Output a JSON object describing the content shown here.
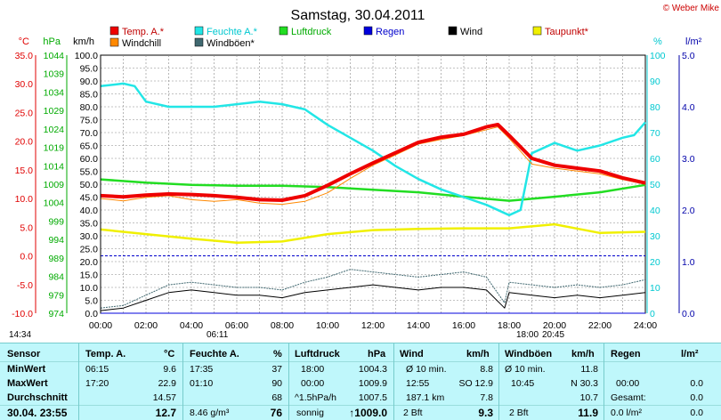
{
  "title": "Samstag, 30.04.2011",
  "copyright": "© Weber Mike",
  "colors": {
    "temp": "#ee0000",
    "feuchte": "#22e6e6",
    "luftdruck": "#22dd22",
    "regen": "#0000dd",
    "wind": "#000000",
    "taupunkt": "#f0f000",
    "windchill": "#ff8800",
    "windboeen": "#406870",
    "table_bg": "#bff7fb"
  },
  "legend": [
    {
      "label": "Temp. A.*",
      "color": "#ee0000"
    },
    {
      "label": "Feuchte A.*",
      "color": "#22e6e6"
    },
    {
      "label": "Luftdruck",
      "color": "#22dd22"
    },
    {
      "label": "Regen",
      "color": "#0000dd"
    },
    {
      "label": "Wind",
      "color": "#000000"
    },
    {
      "label": "Taupunkt*",
      "color": "#f0f000"
    },
    {
      "label": "Windchill",
      "color": "#ff8800"
    },
    {
      "label": "Windböen*",
      "color": "#406870"
    }
  ],
  "axes": {
    "celsius": {
      "label": "°C",
      "ticks": [
        "35.0",
        "30.0",
        "25.0",
        "20.0",
        "15.0",
        "10.0",
        "5.0",
        "0.0",
        "-5.0",
        "-10.0"
      ],
      "min": -10,
      "max": 35
    },
    "hpa": {
      "label": "hPa",
      "ticks": [
        "1044",
        "1039",
        "1034",
        "1029",
        "1024",
        "1019",
        "1014",
        "1009",
        "1004",
        "999",
        "994",
        "989",
        "984",
        "979",
        "974"
      ],
      "min": 974,
      "max": 1044
    },
    "kmh": {
      "label": "km/h",
      "ticks": [
        "100.0",
        "95.0",
        "90.0",
        "85.0",
        "80.0",
        "75.0",
        "70.0",
        "65.0",
        "60.0",
        "55.0",
        "50.0",
        "45.0",
        "40.0",
        "35.0",
        "30.0",
        "25.0",
        "20.0",
        "15.0",
        "10.0",
        "5.0",
        "0.0"
      ],
      "min": 0,
      "max": 100
    },
    "percent": {
      "label": "%",
      "ticks": [
        "100",
        "90",
        "80",
        "70",
        "60",
        "50",
        "40",
        "30",
        "20",
        "10",
        "0"
      ],
      "min": 0,
      "max": 100
    },
    "lm2": {
      "label": "l/m²",
      "ticks": [
        "5.0",
        "4.0",
        "3.0",
        "2.0",
        "1.0",
        "0.0"
      ],
      "min": 0,
      "max": 5
    },
    "time": {
      "ticks": [
        "00:00",
        "02:00",
        "04:00",
        "06:00",
        "08:00",
        "10:00",
        "12:00",
        "14:00",
        "16:00",
        "18:00",
        "20:00",
        "22:00",
        "24:00"
      ]
    }
  },
  "chart_data": {
    "type": "line",
    "title": "Samstag, 30.04.2011",
    "xlim": [
      0,
      24
    ],
    "grid": true,
    "legend_position": "top",
    "series": [
      {
        "name": "Temp. A.*",
        "axis": "celsius",
        "x": [
          0,
          1,
          2,
          3,
          4,
          5,
          6,
          7,
          8,
          9,
          10,
          11,
          12,
          13,
          14,
          15,
          16,
          17,
          17.5,
          18,
          19,
          20,
          21,
          22,
          23,
          24
        ],
        "values": [
          10.5,
          10.3,
          10.6,
          10.8,
          10.7,
          10.5,
          10.2,
          9.8,
          9.7,
          10.5,
          12.3,
          14.3,
          16.2,
          18.0,
          19.8,
          20.7,
          21.2,
          22.5,
          22.9,
          21.0,
          17.0,
          15.8,
          15.3,
          14.8,
          13.6,
          12.7
        ]
      },
      {
        "name": "Windchill",
        "axis": "celsius",
        "x": [
          0,
          1,
          2,
          3,
          4,
          5,
          6,
          7,
          8,
          9,
          10,
          11,
          12,
          13,
          14,
          15,
          16,
          17,
          17.5,
          18,
          19,
          20,
          21,
          22,
          23,
          24
        ],
        "values": [
          10.0,
          9.6,
          10.2,
          10.5,
          9.8,
          9.5,
          9.8,
          9.2,
          9.0,
          9.5,
          11.0,
          13.5,
          15.8,
          17.6,
          19.5,
          20.3,
          21.0,
          22.0,
          22.5,
          20.5,
          16.0,
          15.3,
          14.8,
          14.3,
          13.3,
          12.5
        ]
      },
      {
        "name": "Feuchte A.*",
        "axis": "percent",
        "x": [
          0,
          1,
          1.5,
          2,
          3,
          4,
          5,
          6,
          7,
          8,
          9,
          10,
          11,
          12,
          13,
          14,
          15,
          16,
          17,
          18,
          18.5,
          19,
          20,
          21,
          22,
          23,
          23.5,
          24
        ],
        "values": [
          88,
          89,
          88,
          82,
          80,
          80,
          80,
          81,
          82,
          81,
          79,
          73,
          68,
          63,
          57,
          52,
          48,
          45,
          42,
          38,
          40,
          62,
          66,
          63,
          65,
          68,
          69,
          74
        ]
      },
      {
        "name": "Luftdruck",
        "axis": "hpa",
        "x": [
          0,
          2,
          4,
          6,
          8,
          10,
          12,
          14,
          16,
          18,
          20,
          22,
          24
        ],
        "values": [
          1010.3,
          1009.4,
          1008.8,
          1008.6,
          1008.6,
          1008.2,
          1007.5,
          1006.8,
          1005.6,
          1004.5,
          1005.6,
          1006.8,
          1008.8
        ]
      },
      {
        "name": "Taupunkt*",
        "axis": "celsius",
        "x": [
          0,
          2,
          4,
          6,
          8,
          10,
          12,
          14,
          16,
          18,
          20,
          22,
          24
        ],
        "values": [
          4.6,
          3.8,
          3.0,
          2.3,
          2.5,
          3.8,
          4.5,
          4.7,
          4.8,
          4.8,
          5.5,
          4.0,
          4.2
        ]
      },
      {
        "name": "Wind",
        "axis": "kmh",
        "x": [
          0,
          1,
          2,
          3,
          4,
          5,
          6,
          7,
          8,
          9,
          10,
          11,
          12,
          13,
          14,
          15,
          16,
          17,
          17.8,
          18,
          19,
          20,
          21,
          22,
          23,
          24
        ],
        "values": [
          1,
          2,
          5,
          8,
          9,
          8,
          7,
          7,
          6,
          8,
          9,
          10,
          11,
          10,
          9,
          10,
          10,
          9,
          2,
          8,
          7,
          6,
          7,
          6,
          7,
          8
        ]
      },
      {
        "name": "Windböen*",
        "axis": "kmh",
        "x": [
          0,
          1,
          2,
          3,
          4,
          5,
          6,
          7,
          8,
          9,
          10,
          11,
          12,
          13,
          14,
          15,
          16,
          17,
          17.8,
          18,
          19,
          20,
          21,
          22,
          23,
          24
        ],
        "values": [
          2,
          3,
          7,
          11,
          12,
          11,
          10,
          10,
          9,
          12,
          14,
          17,
          16,
          15,
          14,
          15,
          16,
          14,
          4,
          12,
          11,
          10,
          11,
          10,
          11,
          13
        ]
      },
      {
        "name": "Regen",
        "axis": "lm2",
        "x": [
          0,
          24
        ],
        "values": [
          0,
          0
        ]
      }
    ]
  },
  "time_strip": {
    "t1": "14:34",
    "t2": "06:11",
    "t3": "18:00",
    "t4": "20:45"
  },
  "table": {
    "sensor": {
      "header": "Sensor",
      "min": "MinWert",
      "max": "MaxWert",
      "avg": "Durchschnitt",
      "now": "30.04. 23:55"
    },
    "temp": {
      "header": "Temp. A.",
      "unit": "°C",
      "min_t": "06:15",
      "min_v": "9.6",
      "max_t": "17:20",
      "max_v": "22.9",
      "avg_v": "14.57",
      "now_v": "12.7"
    },
    "feuchte": {
      "header": "Feuchte A.",
      "unit": "%",
      "min_t": "17:35",
      "min_v": "37",
      "max_t": "01:10",
      "max_v": "90",
      "avg_v": "68",
      "now_extra": "8.46 g/m³",
      "now_v": "76"
    },
    "luftdruck": {
      "header": "Luftdruck",
      "unit": "hPa",
      "min_t": "18:00",
      "min_v": "1004.3",
      "max_t": "00:00",
      "max_v": "1009.9",
      "avg_t": "^1.5hPa/h",
      "avg_v": "1007.5",
      "now_t": "sonnig",
      "now_v": "↑1009.0"
    },
    "wind": {
      "header": "Wind",
      "unit": "km/h",
      "min_t": "Ø 10 min.",
      "min_v": "8.8",
      "max_t": "12:55",
      "max_extra": "SO 12.9",
      "avg_t": "187.1 km",
      "avg_v": "7.8",
      "now_t": "2 Bft",
      "now_v": "9.3"
    },
    "windboeen": {
      "header": "Windböen",
      "unit": "km/h",
      "min_t": "Ø 10 min.",
      "min_v": "11.8",
      "max_t": "10:45",
      "max_v": "N 30.3",
      "avg_v": "10.7",
      "now_t": "2 Bft",
      "now_v": "11.9"
    },
    "regen": {
      "header": "Regen",
      "unit": "l/m²",
      "max_t": "00:00",
      "max_v": "0.0",
      "avg_t": "Gesamt:",
      "avg_v": "0.0",
      "now_t": "0.0 l/m²",
      "now_v": "0.0"
    }
  }
}
